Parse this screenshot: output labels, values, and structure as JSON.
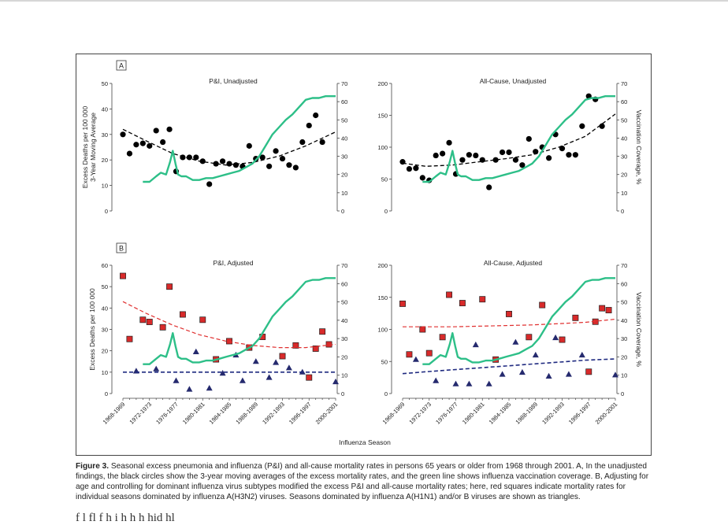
{
  "page": {
    "panel_letters": [
      "A",
      "B"
    ],
    "x_axis_title": "Influenza Season",
    "caption": {
      "label": "Figure 3.",
      "text": " Seasonal excess pneumonia and influenza (P&I) and all-cause mortality rates in persons 65 years or older from 1968 through 2001. A, In the unadjusted findings, the black circles show the 3-year moving averages of the excess mortality rates, and the green line shows influenza vaccination coverage. B, Adjusting for age and controlling for dominant influenza virus subtypes modified the excess P&I and all-cause mortality rates; here, red squares indicate mortality rates for individual seasons dominated by influenza A(H3N2) viruses. Seasons dominated by influenza A(H1N1) and/or B viruses are shown as triangles."
    },
    "body_text_fragment": "f                    l fl                              f                     h  i  h  h     h  hid hl"
  },
  "chart_data": [
    {
      "id": "A-left",
      "panel": "A",
      "type": "scatter",
      "title": "P&I, Unadjusted",
      "ylabel": "Excess Deaths per 100 000\n3-Year Moving Average",
      "y2label": "",
      "ylim": [
        0,
        50
      ],
      "y2lim": [
        0,
        70
      ],
      "yticks": [
        0,
        10,
        20,
        30,
        40,
        50
      ],
      "y2ticks": [
        0,
        10,
        20,
        30,
        40,
        50,
        60,
        70
      ],
      "x_tick_labels": [],
      "colors": {
        "points": "#000000",
        "trend": "#000000",
        "vaccination": "#2dbf88"
      },
      "series": [
        {
          "name": "3-year moving average",
          "kind": "circles",
          "x": [
            1968.5,
            1969.5,
            1970.5,
            1971.5,
            1972.5,
            1973.5,
            1974.5,
            1975.5,
            1976.5,
            1977.5,
            1978.5,
            1979.5,
            1980.5,
            1981.5,
            1982.5,
            1983.5,
            1984.5,
            1985.5,
            1986.5,
            1987.5,
            1988.5,
            1989.5,
            1990.5,
            1991.5,
            1992.5,
            1993.5,
            1994.5,
            1995.5,
            1996.5,
            1997.5,
            1998.5,
            1999.5
          ],
          "y": [
            30,
            22.5,
            26,
            26.5,
            25.5,
            31.5,
            27,
            32,
            15.5,
            21,
            21,
            21,
            19.5,
            10.5,
            18.5,
            19.5,
            18.5,
            18,
            17.5,
            25.5,
            20.5,
            21,
            17.5,
            23.5,
            20.5,
            18,
            17,
            27,
            33.5,
            37.5,
            27,
            null
          ]
        },
        {
          "name": "trend",
          "kind": "dashed",
          "x": [
            1968.5,
            1972,
            1976,
            1980,
            1984,
            1988,
            1992,
            1996,
            2000.5
          ],
          "y": [
            32,
            27.5,
            22.5,
            19.5,
            18,
            19,
            21.5,
            25.5,
            31
          ]
        },
        {
          "name": "vaccination coverage",
          "kind": "line",
          "axis": "y2",
          "x": [
            1971.5,
            1972.5,
            1973.5,
            1974.2,
            1975,
            1975.6,
            1976,
            1976.4,
            1976.8,
            1977.3,
            1978,
            1979,
            1980,
            1981,
            1982,
            1983,
            1984,
            1985,
            1986,
            1987,
            1988,
            1989,
            1990,
            1991,
            1992,
            1993,
            1994,
            1995,
            1996,
            1997,
            1998,
            1999,
            2000,
            2000.5
          ],
          "y": [
            16,
            16,
            19,
            21,
            20,
            27,
            33,
            26,
            20,
            19,
            19,
            17,
            17,
            18,
            18,
            19,
            20,
            21,
            22,
            24,
            26,
            30,
            36,
            42,
            46,
            50,
            53,
            57,
            61,
            62,
            62,
            63,
            63,
            63
          ]
        }
      ]
    },
    {
      "id": "A-right",
      "panel": "A",
      "type": "scatter",
      "title": "All-Cause, Unadjusted",
      "ylabel": "",
      "y2label": "Vaccination Coverage, %",
      "ylim": [
        0,
        200
      ],
      "y2lim": [
        0,
        70
      ],
      "yticks": [
        0,
        50,
        100,
        150,
        200
      ],
      "y2ticks": [
        0,
        10,
        20,
        30,
        40,
        50,
        60,
        70
      ],
      "x_tick_labels": [],
      "colors": {
        "points": "#000000",
        "trend": "#000000",
        "vaccination": "#2dbf88"
      },
      "series": [
        {
          "name": "3-year moving average",
          "kind": "circles",
          "x": [
            1968.5,
            1969.5,
            1970.5,
            1971.5,
            1972.5,
            1973.5,
            1974.5,
            1975.5,
            1976.5,
            1977.5,
            1978.5,
            1979.5,
            1980.5,
            1981.5,
            1982.5,
            1983.5,
            1984.5,
            1985.5,
            1986.5,
            1987.5,
            1988.5,
            1989.5,
            1990.5,
            1991.5,
            1992.5,
            1993.5,
            1994.5,
            1995.5,
            1996.5,
            1997.5,
            1998.5,
            1999.5
          ],
          "y": [
            77,
            66,
            67,
            52,
            48,
            87,
            90,
            107,
            58,
            80,
            88,
            87,
            80,
            37,
            80,
            92,
            92,
            80,
            72,
            113,
            93,
            100,
            83,
            120,
            98,
            88,
            88,
            133,
            180,
            175,
            133,
            null
          ]
        },
        {
          "name": "trend",
          "kind": "dashed",
          "x": [
            1968.5,
            1972,
            1976,
            1980,
            1984,
            1988,
            1992,
            1996,
            2000.5
          ],
          "y": [
            75,
            70,
            72,
            77,
            82,
            88,
            100,
            117,
            152
          ]
        },
        {
          "name": "vaccination coverage",
          "kind": "line",
          "axis": "y2",
          "x": [
            1971.5,
            1972.5,
            1973.5,
            1974.2,
            1975,
            1975.6,
            1976,
            1976.4,
            1976.8,
            1977.3,
            1978,
            1979,
            1980,
            1981,
            1982,
            1983,
            1984,
            1985,
            1986,
            1987,
            1988,
            1989,
            1990,
            1991,
            1992,
            1993,
            1994,
            1995,
            1996,
            1997,
            1998,
            1999,
            2000,
            2000.5
          ],
          "y": [
            16,
            16,
            19,
            21,
            20,
            27,
            33,
            26,
            20,
            19,
            19,
            17,
            17,
            18,
            18,
            19,
            20,
            21,
            22,
            24,
            26,
            30,
            36,
            42,
            46,
            50,
            53,
            57,
            61,
            62,
            62,
            63,
            63,
            63
          ]
        }
      ]
    },
    {
      "id": "B-left",
      "panel": "B",
      "type": "scatter",
      "title": "P&I, Adjusted",
      "ylabel": "Excess Deaths per 100 000",
      "y2label": "",
      "ylim": [
        0,
        60
      ],
      "y2lim": [
        0,
        70
      ],
      "yticks": [
        0,
        10,
        20,
        30,
        40,
        50,
        60
      ],
      "y2ticks": [
        0,
        10,
        20,
        30,
        40,
        50,
        60,
        70
      ],
      "x_tick_labels": [
        "1968-1969",
        "1972-1973",
        "1976-1977",
        "1980-1981",
        "1984-1985",
        "1988-1989",
        "1992-1993",
        "1996-1997",
        "2000-2001"
      ],
      "colors": {
        "h3n2": "#d82a2a",
        "h1n1_b": "#252a6e",
        "h3n2_trend": "#e03030",
        "h1n1_trend": "#1f2a80",
        "vaccination": "#2dbf88"
      },
      "series": [
        {
          "name": "A(H3N2) seasons",
          "kind": "squares",
          "x": [
            1968.5,
            1969.5,
            1971.5,
            1972.5,
            1974.5,
            1975.5,
            1977.5,
            1980.5,
            1982.5,
            1984.5,
            1987.5,
            1989.5,
            1992.5,
            1994.5,
            1996.5,
            1997.5,
            1998.5,
            1999.5
          ],
          "y": [
            55,
            25.5,
            34.5,
            33.5,
            31,
            50,
            37,
            34.5,
            16,
            24.5,
            21.5,
            26.5,
            17.5,
            22.5,
            7.5,
            21,
            29,
            23
          ]
        },
        {
          "name": "A(H1N1) and/or B seasons",
          "kind": "triangles",
          "x": [
            1970.5,
            1973.5,
            1976.5,
            1978.5,
            1979.5,
            1981.5,
            1983.5,
            1985.5,
            1986.5,
            1988.5,
            1990.5,
            1991.5,
            1993.5,
            1995.5,
            2000.5
          ],
          "y": [
            10.5,
            11.5,
            6,
            2,
            19.5,
            2.5,
            9.5,
            18,
            6,
            15,
            7.5,
            14.5,
            12,
            10,
            5.5
          ]
        },
        {
          "name": "H3N2 trend",
          "kind": "dashed-red",
          "x": [
            1968.5,
            1972,
            1976,
            1980,
            1984,
            1988,
            1992,
            1996,
            2000.5
          ],
          "y": [
            43,
            37.5,
            32,
            27.5,
            24.5,
            22.5,
            21.5,
            21.5,
            23
          ]
        },
        {
          "name": "H1N1/B trend",
          "kind": "dashed-blue",
          "x": [
            1968.5,
            2000.5
          ],
          "y": [
            10,
            10
          ]
        },
        {
          "name": "vaccination coverage",
          "kind": "line",
          "axis": "y2",
          "x": [
            1971.5,
            1972.5,
            1973.5,
            1974.2,
            1975,
            1975.6,
            1976,
            1976.4,
            1976.8,
            1977.3,
            1978,
            1979,
            1980,
            1981,
            1982,
            1983,
            1984,
            1985,
            1986,
            1987,
            1988,
            1989,
            1990,
            1991,
            1992,
            1993,
            1994,
            1995,
            1996,
            1997,
            1998,
            1999,
            2000,
            2000.5
          ],
          "y": [
            16,
            16,
            19,
            21,
            20,
            27,
            33,
            26,
            20,
            19,
            19,
            17,
            17,
            18,
            18,
            19,
            20,
            21,
            22,
            24,
            26,
            30,
            36,
            42,
            46,
            50,
            53,
            57,
            61,
            62,
            62,
            63,
            63,
            63
          ]
        }
      ]
    },
    {
      "id": "B-right",
      "panel": "B",
      "type": "scatter",
      "title": "All-Cause, Adjusted",
      "ylabel": "",
      "y2label": "Vaccination Coverage, %",
      "ylim": [
        0,
        200
      ],
      "y2lim": [
        0,
        70
      ],
      "yticks": [
        0,
        50,
        100,
        150,
        200
      ],
      "y2ticks": [
        0,
        10,
        20,
        30,
        40,
        50,
        60,
        70
      ],
      "x_tick_labels": [
        "1968-1969",
        "1972-1973",
        "1976-1977",
        "1980-1981",
        "1984-1985",
        "1988-1989",
        "1992-1993",
        "1996-1997",
        "2000-2001"
      ],
      "colors": {
        "h3n2": "#d82a2a",
        "h1n1_b": "#252a6e",
        "h3n2_trend": "#e03030",
        "h1n1_trend": "#1f2a80",
        "vaccination": "#2dbf88"
      },
      "series": [
        {
          "name": "A(H3N2) seasons",
          "kind": "squares",
          "x": [
            1968.5,
            1969.5,
            1971.5,
            1972.5,
            1974.5,
            1975.5,
            1977.5,
            1980.5,
            1982.5,
            1984.5,
            1987.5,
            1989.5,
            1992.5,
            1994.5,
            1996.5,
            1997.5,
            1998.5,
            1999.5
          ],
          "y": [
            140,
            61,
            100,
            63,
            88,
            154,
            141,
            147,
            53,
            124,
            88,
            138,
            84,
            118,
            34,
            112,
            133,
            130
          ]
        },
        {
          "name": "A(H1N1) and/or B seasons",
          "kind": "triangles",
          "x": [
            1970.5,
            1973.5,
            1976.5,
            1978.5,
            1979.5,
            1981.5,
            1983.5,
            1985.5,
            1986.5,
            1988.5,
            1990.5,
            1991.5,
            1993.5,
            1995.5,
            2000.5
          ],
          "y": [
            53,
            20,
            15,
            15,
            76,
            15,
            30,
            80,
            33,
            60,
            27,
            87,
            30,
            60,
            29
          ]
        },
        {
          "name": "H3N2 trend",
          "kind": "dashed-red",
          "x": [
            1968.5,
            1972,
            1976,
            1980,
            1984,
            1988,
            1992,
            1996,
            2000.5
          ],
          "y": [
            104,
            104,
            104,
            105,
            106,
            107,
            109,
            111,
            116
          ]
        },
        {
          "name": "H1N1/B trend",
          "kind": "dashed-blue",
          "x": [
            1968.5,
            1972,
            1976,
            1980,
            1984,
            1988,
            1992,
            1996,
            2000.5
          ],
          "y": [
            31,
            34,
            37,
            40,
            43,
            46,
            49,
            52,
            54
          ]
        },
        {
          "name": "vaccination coverage",
          "kind": "line",
          "axis": "y2",
          "x": [
            1971.5,
            1972.5,
            1973.5,
            1974.2,
            1975,
            1975.6,
            1976,
            1976.4,
            1976.8,
            1977.3,
            1978,
            1979,
            1980,
            1981,
            1982,
            1983,
            1984,
            1985,
            1986,
            1987,
            1988,
            1989,
            1990,
            1991,
            1992,
            1993,
            1994,
            1995,
            1996,
            1997,
            1998,
            1999,
            2000,
            2000.5
          ],
          "y": [
            16,
            16,
            19,
            21,
            20,
            27,
            33,
            26,
            20,
            19,
            19,
            17,
            17,
            18,
            18,
            19,
            20,
            21,
            22,
            24,
            26,
            30,
            36,
            42,
            46,
            50,
            53,
            57,
            61,
            62,
            62,
            63,
            63,
            63
          ]
        }
      ]
    }
  ]
}
